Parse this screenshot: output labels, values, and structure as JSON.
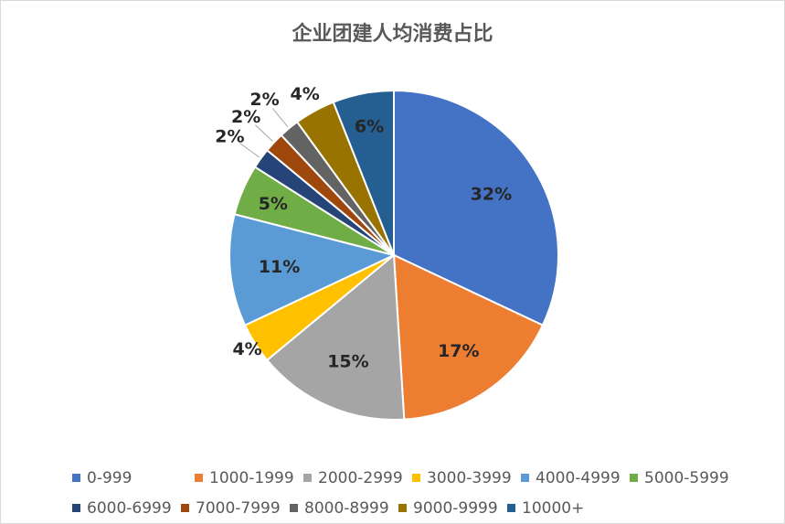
{
  "chart_data": {
    "type": "pie",
    "title": "企业团建人均消费占比",
    "categories": [
      "0-999",
      "1000-1999",
      "2000-2999",
      "3000-3999",
      "4000-4999",
      "5000-5999",
      "6000-6999",
      "7000-7999",
      "8000-8999",
      "9000-9999",
      "10000+"
    ],
    "values": [
      32,
      17,
      15,
      4,
      11,
      5,
      2,
      2,
      2,
      4,
      6
    ],
    "labels": [
      "32%",
      "17%",
      "15%",
      "4%",
      "11%",
      "5%",
      "2%",
      "2%",
      "2%",
      "4%",
      "6%"
    ],
    "colors": [
      "#4472C4",
      "#ED7D31",
      "#A5A5A5",
      "#FFC000",
      "#5B9BD5",
      "#70AD47",
      "#264478",
      "#9E480E",
      "#636363",
      "#997300",
      "#255E91"
    ],
    "legend_position": "bottom"
  }
}
